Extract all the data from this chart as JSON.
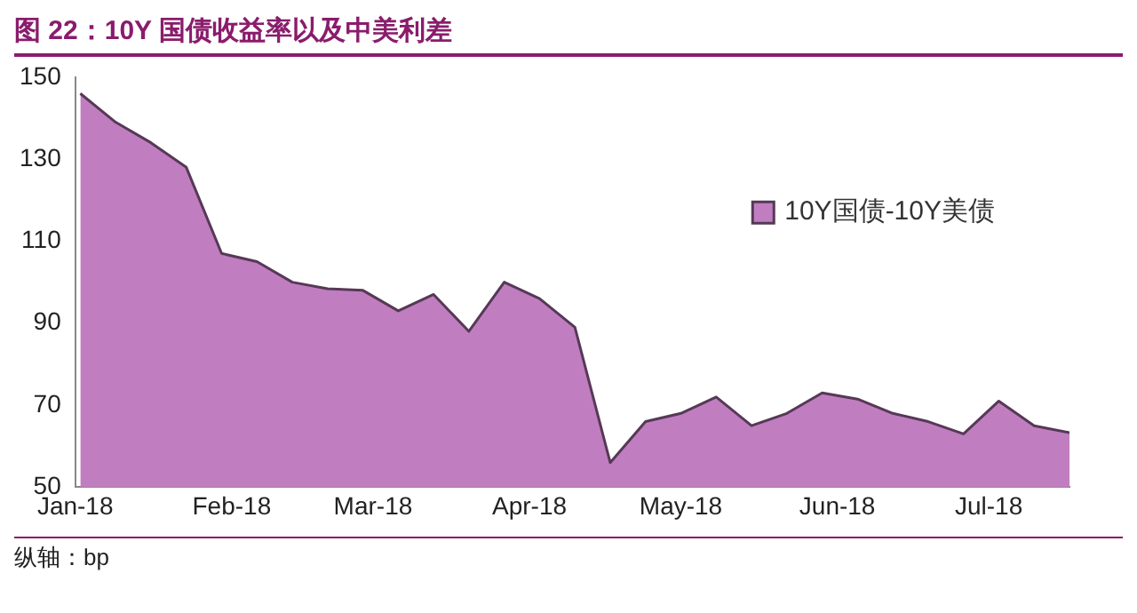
{
  "chart_data": {
    "type": "area",
    "title": "图 22：10Y 国债收益率以及中美利差",
    "annotations": [
      "纵轴：bp"
    ],
    "x": [
      "2018-01-02",
      "2018-01-09",
      "2018-01-16",
      "2018-01-23",
      "2018-01-30",
      "2018-02-06",
      "2018-02-13",
      "2018-02-20",
      "2018-02-27",
      "2018-03-06",
      "2018-03-13",
      "2018-03-20",
      "2018-03-27",
      "2018-04-03",
      "2018-04-10",
      "2018-04-17",
      "2018-04-24",
      "2018-05-01",
      "2018-05-08",
      "2018-05-15",
      "2018-05-22",
      "2018-05-29",
      "2018-06-05",
      "2018-06-12",
      "2018-06-19",
      "2018-06-26",
      "2018-07-03",
      "2018-07-10",
      "2018-07-17"
    ],
    "series": [
      {
        "name": "10Y国债-10Y美债",
        "color": "#c07ec0",
        "values": [
          146,
          139,
          134,
          128,
          107,
          105,
          100,
          98.4,
          98,
          93,
          97,
          88,
          100,
          96,
          89,
          56,
          66,
          68,
          72,
          65,
          68,
          73,
          71.5,
          68,
          66,
          63,
          71,
          65,
          63.3
        ]
      }
    ],
    "xlim": [
      "2018-01-01",
      "2018-07-17"
    ],
    "xticks": [
      {
        "value": "2018-01-01",
        "label": "Jan-18"
      },
      {
        "value": "2018-02-01",
        "label": "Feb-18"
      },
      {
        "value": "2018-03-01",
        "label": "Mar-18"
      },
      {
        "value": "2018-04-01",
        "label": "Apr-18"
      },
      {
        "value": "2018-05-01",
        "label": "May-18"
      },
      {
        "value": "2018-06-01",
        "label": "Jun-18"
      },
      {
        "value": "2018-07-01",
        "label": "Jul-18"
      }
    ],
    "ylim": [
      50,
      150
    ],
    "yticks": [
      50,
      70,
      90,
      110,
      130,
      150
    ],
    "grid": false,
    "legend": "top right",
    "marker": "none",
    "line_style": "solid"
  }
}
